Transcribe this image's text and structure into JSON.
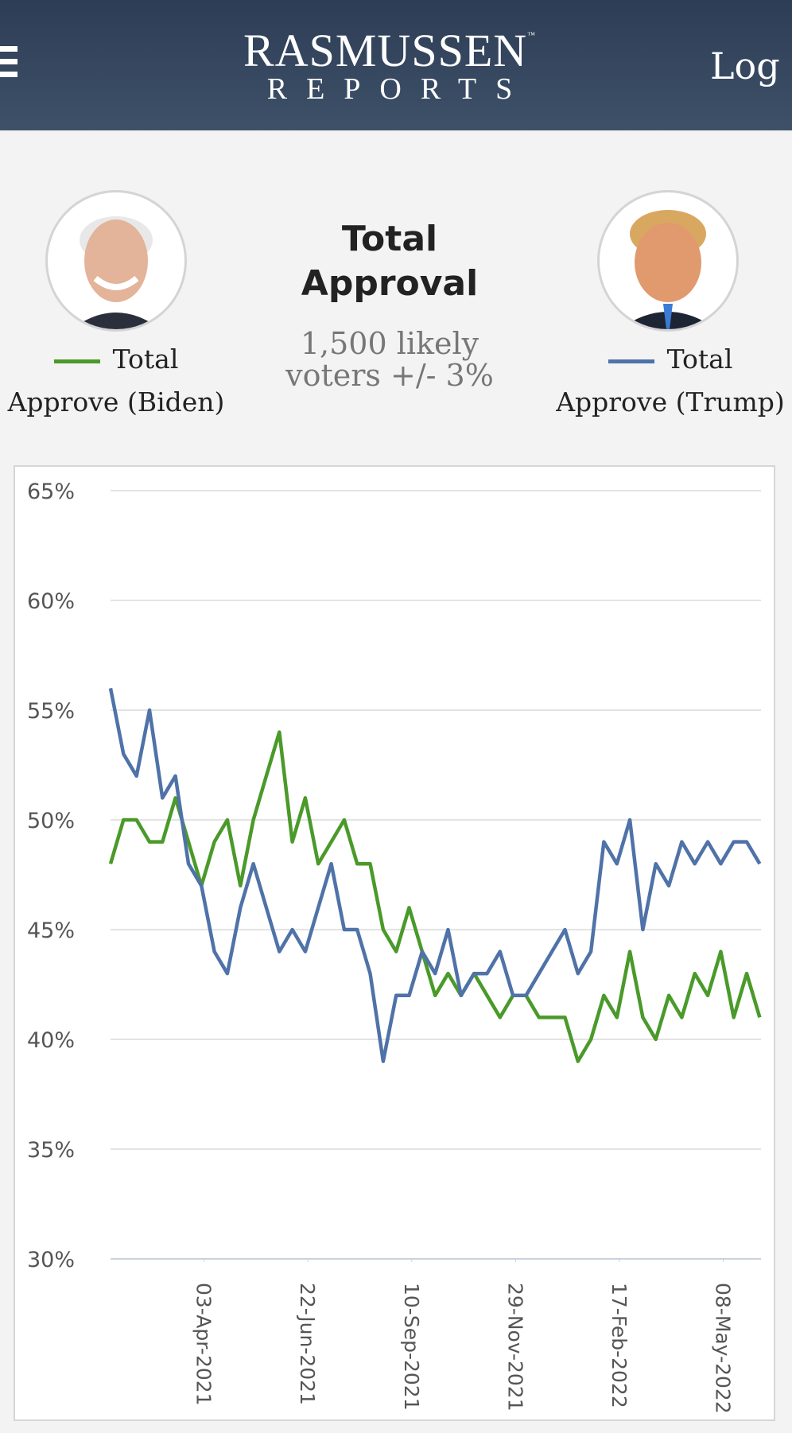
{
  "header": {
    "logo_top": "RASMUSSEN",
    "logo_tm": "™",
    "logo_bottom": "REPORTS",
    "login": "Log In"
  },
  "summary": {
    "title_line1": "Total",
    "title_line2": "Approval",
    "note_line1": "1,500 likely",
    "note_line2": "voters +/- 3%"
  },
  "chart_data": {
    "type": "line",
    "x": [
      "21-Jan-2021",
      "31-Jan-2021",
      "10-Feb-2021",
      "20-Feb-2021",
      "02-Mar-2021",
      "12-Mar-2021",
      "22-Mar-2021",
      "01-Apr-2021",
      "11-Apr-2021",
      "21-Apr-2021",
      "01-May-2021",
      "11-May-2021",
      "21-May-2021",
      "31-May-2021",
      "10-Jun-2021",
      "20-Jun-2021",
      "30-Jun-2021",
      "10-Jul-2021",
      "20-Jul-2021",
      "30-Jul-2021",
      "09-Aug-2021",
      "19-Aug-2021",
      "29-Aug-2021",
      "08-Sep-2021",
      "18-Sep-2021",
      "28-Sep-2021",
      "08-Oct-2021",
      "18-Oct-2021",
      "28-Oct-2021",
      "07-Nov-2021",
      "17-Nov-2021",
      "27-Nov-2021",
      "07-Dec-2021",
      "17-Dec-2021",
      "27-Dec-2021",
      "06-Jan-2022",
      "16-Jan-2022",
      "26-Jan-2022",
      "05-Feb-2022",
      "15-Feb-2022",
      "25-Feb-2022",
      "07-Mar-2022",
      "17-Mar-2022",
      "27-Mar-2022",
      "06-Apr-2022",
      "16-Apr-2022",
      "26-Apr-2022",
      "06-May-2022",
      "16-May-2022",
      "26-May-2022",
      "05-Jun-2022"
    ],
    "series": [
      {
        "name": "Total Approve (Biden)",
        "color": "#4a9a2a",
        "values": [
          48,
          50,
          50,
          49,
          49,
          51,
          49,
          47,
          49,
          50,
          47,
          50,
          52,
          54,
          49,
          51,
          48,
          49,
          50,
          48,
          48,
          45,
          44,
          46,
          44,
          42,
          43,
          42,
          43,
          42,
          41,
          42,
          42,
          41,
          41,
          41,
          39,
          40,
          42,
          41,
          44,
          41,
          40,
          42,
          41,
          43,
          42,
          44,
          41,
          43,
          41
        ]
      },
      {
        "name": "Total Approve (Trump)",
        "color": "#4f72a8",
        "values": [
          56,
          53,
          52,
          55,
          51,
          52,
          48,
          47,
          44,
          43,
          46,
          48,
          46,
          44,
          45,
          44,
          46,
          48,
          45,
          45,
          43,
          39,
          42,
          42,
          44,
          43,
          45,
          42,
          43,
          43,
          44,
          42,
          42,
          43,
          44,
          45,
          43,
          44,
          49,
          48,
          50,
          45,
          48,
          47,
          49,
          48,
          49,
          48,
          49,
          49,
          48
        ]
      }
    ],
    "xlim": [
      "21-Jan-2021",
      "06-Jun-2022"
    ],
    "xticks": [
      "03-Apr-2021",
      "22-Jun-2021",
      "10-Sep-2021",
      "29-Nov-2021",
      "17-Feb-2022",
      "08-May-2022"
    ],
    "ylim": [
      30,
      65
    ],
    "yticks": [
      {
        "value": 30,
        "label": "30%"
      },
      {
        "value": 35,
        "label": "35%"
      },
      {
        "value": 40,
        "label": "40%"
      },
      {
        "value": 45,
        "label": "45%"
      },
      {
        "value": 50,
        "label": "50%"
      },
      {
        "value": 55,
        "label": "55%"
      },
      {
        "value": 60,
        "label": "60%"
      },
      {
        "value": 65,
        "label": "65%"
      }
    ],
    "grid": true
  }
}
